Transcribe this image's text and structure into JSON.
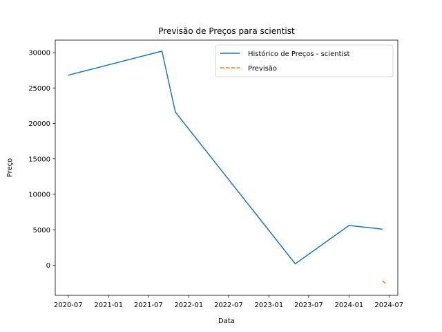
{
  "chart_data": {
    "type": "line",
    "title": "Previsão de Preços para scientist",
    "xlabel": "Data",
    "ylabel": "Preço",
    "x_axis": {
      "kind": "date",
      "range": [
        "2020-05-03",
        "2024-08-10"
      ],
      "ticks": [
        "2020-07-01",
        "2021-01-01",
        "2021-07-01",
        "2022-01-01",
        "2022-07-01",
        "2023-01-01",
        "2023-07-01",
        "2024-01-01",
        "2024-07-01"
      ],
      "tick_labels": [
        "2020-07",
        "2021-01",
        "2021-07",
        "2022-01",
        "2022-07",
        "2023-01",
        "2023-07",
        "2024-01",
        "2024-07"
      ]
    },
    "y_axis": {
      "range": [
        -4250,
        31750
      ],
      "ticks": [
        0,
        5000,
        10000,
        15000,
        20000,
        25000,
        30000
      ],
      "tick_labels": [
        "0",
        "5000",
        "10000",
        "15000",
        "20000",
        "25000",
        "30000"
      ]
    },
    "grid": false,
    "legend": {
      "position": "top-right"
    },
    "series": [
      {
        "name": "Histórico de Preços - scientist",
        "color": "#1f77b4",
        "style": "solid",
        "points": [
          {
            "x": "2020-07-01",
            "y": 26800
          },
          {
            "x": "2021-09-01",
            "y": 30200
          },
          {
            "x": "2021-11-01",
            "y": 21600
          },
          {
            "x": "2023-05-01",
            "y": 200
          },
          {
            "x": "2024-01-01",
            "y": 5600
          },
          {
            "x": "2024-06-01",
            "y": 5100
          }
        ]
      },
      {
        "name": "Previsão",
        "color": "#ff7f0e",
        "style": "dashed",
        "points": [
          {
            "x": "2024-06-01",
            "y": -2200
          },
          {
            "x": "2024-06-20",
            "y": -2700
          }
        ]
      }
    ]
  }
}
